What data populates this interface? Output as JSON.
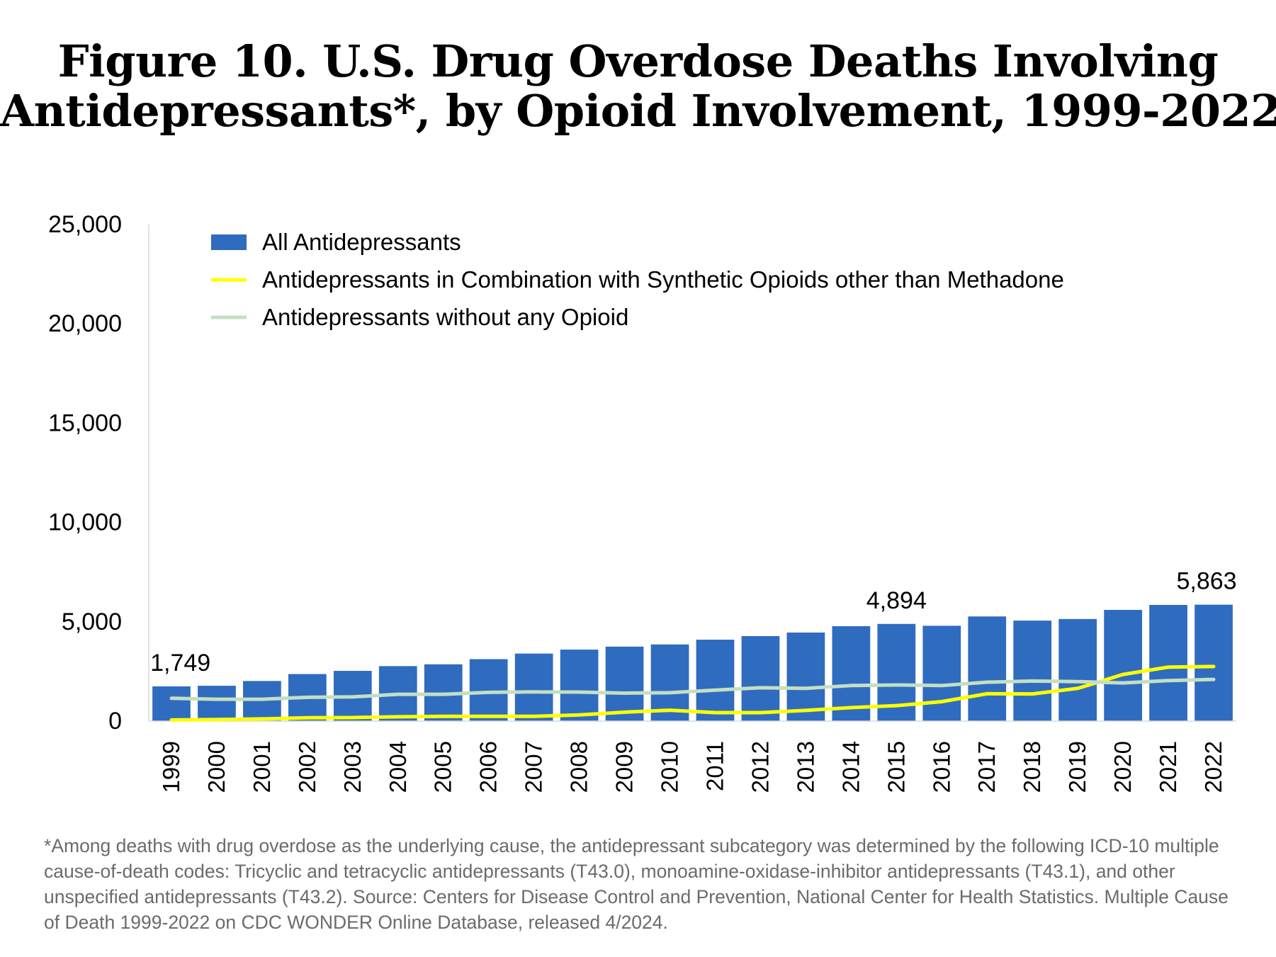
{
  "title_line1": "Figure 10. U.S. Drug Overdose Deaths Involving",
  "title_line2": "Antidepressants*, by Opioid Involvement, 1999-2022",
  "footnote": "*Among deaths with drug overdose as the underlying cause, the antidepressant subcategory was determined by the following ICD-10 multiple cause-of-death codes: Tricyclic and tetracyclic antidepressants (T43.0), monoamine-oxidase-inhibitor antidepressants (T43.1), and other unspecified antidepressants (T43.2). Source: Centers for Disease Control and Prevention, National Center for Health Statistics. Multiple Cause of Death 1999-2022 on CDC WONDER Online Database, released 4/2024.",
  "chart_data": {
    "type": "bar",
    "ylim": [
      0,
      25000
    ],
    "yticks": [
      "0",
      "5,000",
      "10,000",
      "15,000",
      "20,000",
      "25,000"
    ],
    "ytick_values": [
      0,
      5000,
      10000,
      15000,
      20000,
      25000
    ],
    "categories": [
      "1999",
      "2000",
      "2001",
      "2002",
      "2003",
      "2004",
      "2005",
      "2006",
      "2007",
      "2008",
      "2009",
      "2010",
      "2011",
      "2012",
      "2013",
      "2014",
      "2015",
      "2016",
      "2017",
      "2018",
      "2019",
      "2020",
      "2021",
      "2022"
    ],
    "legend_position": "top-left",
    "grid": false,
    "series": [
      {
        "name": "All Antidepressants",
        "kind": "bar",
        "color": "#2f6cc0",
        "values": [
          1749,
          1780,
          2020,
          2370,
          2530,
          2770,
          2860,
          3120,
          3400,
          3600,
          3750,
          3860,
          4100,
          4280,
          4460,
          4780,
          4894,
          4800,
          5270,
          5060,
          5140,
          5600,
          5850,
          5863
        ]
      },
      {
        "name": "Antidepressants in Combination with Synthetic Opioids other than Methadone",
        "kind": "line",
        "color": "#ffff00",
        "values": [
          60,
          80,
          110,
          170,
          180,
          220,
          240,
          240,
          240,
          310,
          450,
          550,
          430,
          430,
          540,
          680,
          780,
          980,
          1380,
          1370,
          1650,
          2350,
          2720,
          2750
        ]
      },
      {
        "name": "Antidepressants without any Opioid",
        "kind": "line",
        "color": "#c4dfc2",
        "values": [
          1150,
          1100,
          1100,
          1200,
          1220,
          1350,
          1350,
          1450,
          1470,
          1460,
          1410,
          1430,
          1560,
          1680,
          1650,
          1790,
          1820,
          1790,
          1960,
          2020,
          1990,
          1920,
          2040,
          2100
        ]
      }
    ],
    "data_labels": [
      {
        "category": "1999",
        "text": "1,749"
      },
      {
        "category": "2015",
        "text": "4,894"
      },
      {
        "category": "2022",
        "text": "5,863"
      }
    ]
  }
}
